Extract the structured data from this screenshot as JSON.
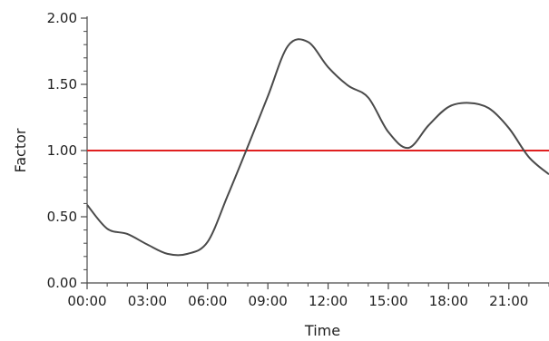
{
  "chart_data": {
    "type": "line",
    "xlabel": "Time",
    "ylabel": "Factor",
    "xlim": [
      0,
      23
    ],
    "ylim": [
      0,
      2
    ],
    "grid": false,
    "x_ticks": [
      {
        "value": 0,
        "label": "00:00"
      },
      {
        "value": 3,
        "label": "03:00"
      },
      {
        "value": 6,
        "label": "06:00"
      },
      {
        "value": 9,
        "label": "09:00"
      },
      {
        "value": 12,
        "label": "12:00"
      },
      {
        "value": 15,
        "label": "15:00"
      },
      {
        "value": 18,
        "label": "18:00"
      },
      {
        "value": 21,
        "label": "21:00"
      }
    ],
    "y_ticks": [
      {
        "value": 0,
        "label": "0.00"
      },
      {
        "value": 0.5,
        "label": "0.50"
      },
      {
        "value": 1,
        "label": "1.00"
      },
      {
        "value": 1.5,
        "label": "1.50"
      },
      {
        "value": 2,
        "label": "2.00"
      }
    ],
    "series": [
      {
        "color": "#4a4a4a",
        "x": [
          0,
          1,
          2,
          3,
          4,
          5,
          6,
          7,
          8,
          9,
          10,
          11,
          12,
          13,
          14,
          15,
          16,
          17,
          18,
          19,
          20,
          21,
          22,
          23
        ],
        "y": [
          0.59,
          0.41,
          0.37,
          0.29,
          0.22,
          0.22,
          0.31,
          0.66,
          1.03,
          1.41,
          1.79,
          1.82,
          1.63,
          1.49,
          1.4,
          1.14,
          1.02,
          1.19,
          1.33,
          1.36,
          1.32,
          1.17,
          0.95,
          0.82
        ]
      }
    ],
    "reference_line": {
      "y": 1.0,
      "color": "#e02020"
    }
  }
}
